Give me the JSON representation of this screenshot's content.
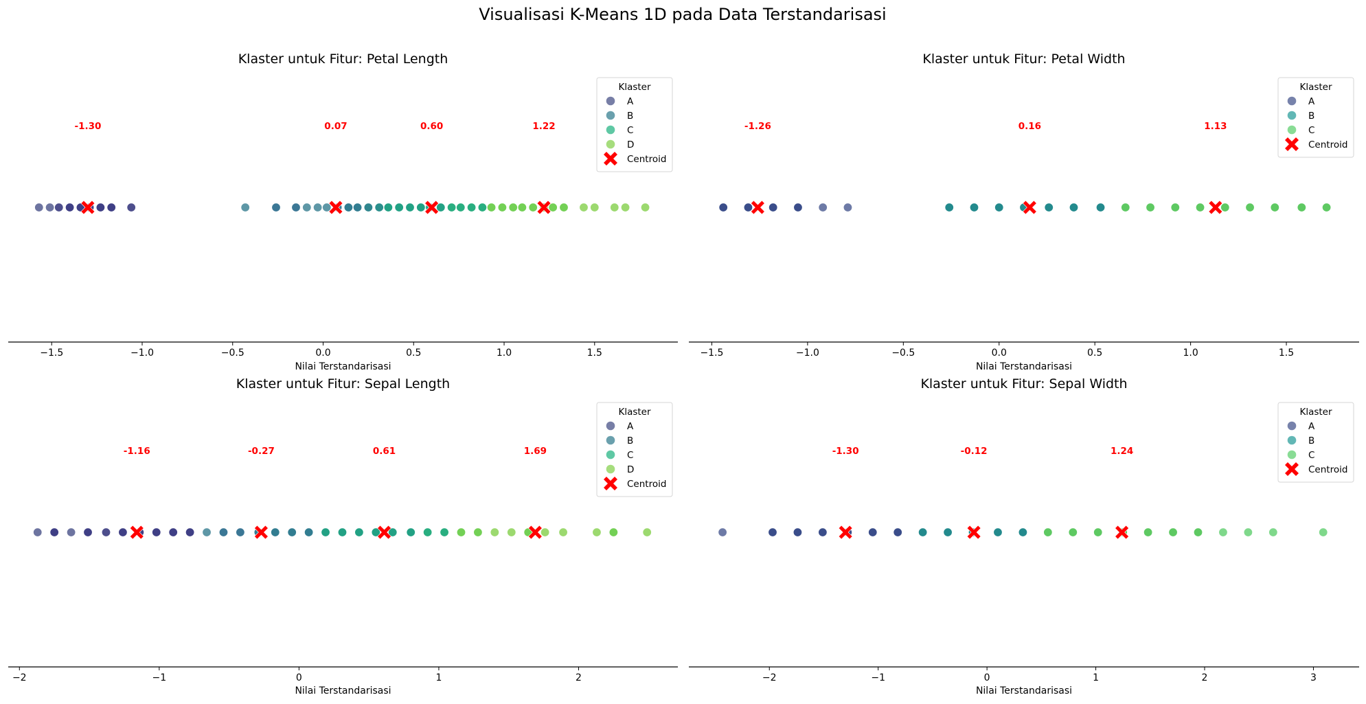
{
  "figure": {
    "title": "Visualisasi K-Means 1D pada Data Terstandarisasi"
  },
  "colors": {
    "centroid": "#ff0000",
    "label": "#ff0000"
  },
  "chart_data": [
    {
      "type": "scatter",
      "title": "Klaster untuk Fitur: Petal Length",
      "xlabel": "Nilai Terstandarisasi",
      "ylabel": "",
      "xlim": [
        -1.74,
        1.96
      ],
      "xticks": [
        -1.5,
        -1.0,
        -0.5,
        0.0,
        0.5,
        1.0,
        1.5
      ],
      "xtick_labels": [
        "−1.5",
        "−1.0",
        "−0.5",
        "0.0",
        "0.5",
        "1.0",
        "1.5"
      ],
      "legend": {
        "title": "Klaster",
        "position": "top-right",
        "centroid_label": "Centroid"
      },
      "clusters": [
        {
          "name": "A",
          "color": "#6d74a0",
          "legend_color": "#777ea6"
        },
        {
          "name": "B",
          "color": "#5e97a6",
          "legend_color": "#6aa0ad"
        },
        {
          "name": "C",
          "color": "#52c29b",
          "legend_color": "#5fc8a4"
        },
        {
          "name": "D",
          "color": "#9cd96f",
          "legend_color": "#a6dd7d"
        }
      ],
      "points": [
        {
          "x": -1.57,
          "color": "#6d74a0"
        },
        {
          "x": -1.51,
          "color": "#6d74a0"
        },
        {
          "x": -1.46,
          "color": "#4d4e8c"
        },
        {
          "x": -1.4,
          "color": "#3f3f85"
        },
        {
          "x": -1.34,
          "color": "#3f3f85"
        },
        {
          "x": -1.29,
          "color": "#3f3f85"
        },
        {
          "x": -1.23,
          "color": "#3f3f85"
        },
        {
          "x": -1.17,
          "color": "#3f3f85"
        },
        {
          "x": -1.06,
          "color": "#4d4e8c"
        },
        {
          "x": -0.43,
          "color": "#5e97a6"
        },
        {
          "x": -0.26,
          "color": "#3b7795"
        },
        {
          "x": -0.15,
          "color": "#3b7795"
        },
        {
          "x": -0.09,
          "color": "#5e97a6"
        },
        {
          "x": -0.03,
          "color": "#5e97a6"
        },
        {
          "x": 0.02,
          "color": "#5e97a6"
        },
        {
          "x": 0.08,
          "color": "#3b7795"
        },
        {
          "x": 0.14,
          "color": "#327d91"
        },
        {
          "x": 0.19,
          "color": "#327d91"
        },
        {
          "x": 0.25,
          "color": "#30868e"
        },
        {
          "x": 0.31,
          "color": "#2b8f8c"
        },
        {
          "x": 0.36,
          "color": "#22a184"
        },
        {
          "x": 0.42,
          "color": "#22a184"
        },
        {
          "x": 0.48,
          "color": "#22a184"
        },
        {
          "x": 0.54,
          "color": "#22a184"
        },
        {
          "x": 0.59,
          "color": "#22a184"
        },
        {
          "x": 0.65,
          "color": "#22a184"
        },
        {
          "x": 0.71,
          "color": "#29ae80"
        },
        {
          "x": 0.76,
          "color": "#29ae80"
        },
        {
          "x": 0.82,
          "color": "#29ae80"
        },
        {
          "x": 0.88,
          "color": "#29ae80"
        },
        {
          "x": 0.93,
          "color": "#73d055"
        },
        {
          "x": 0.99,
          "color": "#73d055"
        },
        {
          "x": 1.05,
          "color": "#73d055"
        },
        {
          "x": 1.1,
          "color": "#73d055"
        },
        {
          "x": 1.16,
          "color": "#73d055"
        },
        {
          "x": 1.22,
          "color": "#73d055"
        },
        {
          "x": 1.27,
          "color": "#73d055"
        },
        {
          "x": 1.33,
          "color": "#73d055"
        },
        {
          "x": 1.44,
          "color": "#9cd96f"
        },
        {
          "x": 1.5,
          "color": "#9cd96f"
        },
        {
          "x": 1.61,
          "color": "#9cd96f"
        },
        {
          "x": 1.67,
          "color": "#9cd96f"
        },
        {
          "x": 1.78,
          "color": "#9cd96f"
        }
      ],
      "centroids": [
        {
          "x": -1.3,
          "label": "-1.30"
        },
        {
          "x": 0.07,
          "label": "0.07"
        },
        {
          "x": 0.6,
          "label": "0.60"
        },
        {
          "x": 1.22,
          "label": "1.22"
        }
      ]
    },
    {
      "type": "scatter",
      "title": "Klaster untuk Fitur: Petal Width",
      "xlabel": "Nilai Terstandarisasi",
      "ylabel": "",
      "xlim": [
        -1.62,
        1.88
      ],
      "xticks": [
        -1.5,
        -1.0,
        -0.5,
        0.0,
        0.5,
        1.0,
        1.5
      ],
      "xtick_labels": [
        "−1.5",
        "−1.0",
        "−0.5",
        "0.0",
        "0.5",
        "1.0",
        "1.5"
      ],
      "legend": {
        "title": "Klaster",
        "position": "top-right",
        "centroid_label": "Centroid"
      },
      "clusters": [
        {
          "name": "A",
          "color": "#6d7aa6",
          "legend_color": "#7782ab"
        },
        {
          "name": "B",
          "color": "#52aeae",
          "legend_color": "#62b7b5"
        },
        {
          "name": "C",
          "color": "#7fd88b",
          "legend_color": "#89dc95"
        }
      ],
      "points": [
        {
          "x": -1.44,
          "color": "#3a4d8a"
        },
        {
          "x": -1.31,
          "color": "#3a4d8a"
        },
        {
          "x": -1.18,
          "color": "#3a4d8a"
        },
        {
          "x": -1.05,
          "color": "#3a4d8a"
        },
        {
          "x": -0.92,
          "color": "#6d7aa6"
        },
        {
          "x": -0.79,
          "color": "#6d7aa6"
        },
        {
          "x": -0.26,
          "color": "#238a8d"
        },
        {
          "x": -0.13,
          "color": "#238a8d"
        },
        {
          "x": 0.0,
          "color": "#238a8d"
        },
        {
          "x": 0.13,
          "color": "#238a8d"
        },
        {
          "x": 0.26,
          "color": "#238a8d"
        },
        {
          "x": 0.39,
          "color": "#238a8d"
        },
        {
          "x": 0.53,
          "color": "#238a8d"
        },
        {
          "x": 0.66,
          "color": "#5ec962"
        },
        {
          "x": 0.79,
          "color": "#5ec962"
        },
        {
          "x": 0.92,
          "color": "#5ec962"
        },
        {
          "x": 1.05,
          "color": "#5ec962"
        },
        {
          "x": 1.18,
          "color": "#5ec962"
        },
        {
          "x": 1.31,
          "color": "#5ec962"
        },
        {
          "x": 1.44,
          "color": "#5ec962"
        },
        {
          "x": 1.58,
          "color": "#5ec962"
        },
        {
          "x": 1.71,
          "color": "#5ec962"
        }
      ],
      "centroids": [
        {
          "x": -1.26,
          "label": "-1.26"
        },
        {
          "x": 0.16,
          "label": "0.16"
        },
        {
          "x": 1.13,
          "label": "1.13"
        }
      ]
    },
    {
      "type": "scatter",
      "title": "Klaster untuk Fitur: Sepal Length",
      "xlabel": "Nilai Terstandarisasi",
      "ylabel": "",
      "xlim": [
        -2.08,
        2.71
      ],
      "xticks": [
        -2,
        -1,
        0,
        1,
        2
      ],
      "xtick_labels": [
        "−2",
        "−1",
        "0",
        "1",
        "2"
      ],
      "legend": {
        "title": "Klaster",
        "position": "top-right",
        "centroid_label": "Centroid"
      },
      "clusters": [
        {
          "name": "A",
          "color": "#6d74a0",
          "legend_color": "#777ea6"
        },
        {
          "name": "B",
          "color": "#5e97a6",
          "legend_color": "#6aa0ad"
        },
        {
          "name": "C",
          "color": "#52c29b",
          "legend_color": "#5fc8a4"
        },
        {
          "name": "D",
          "color": "#9cd96f",
          "legend_color": "#a6dd7d"
        }
      ],
      "points": [
        {
          "x": -1.87,
          "color": "#6d74a0"
        },
        {
          "x": -1.75,
          "color": "#3f3f85"
        },
        {
          "x": -1.63,
          "color": "#6d74a0"
        },
        {
          "x": -1.51,
          "color": "#3f3f85"
        },
        {
          "x": -1.38,
          "color": "#4d4e8c"
        },
        {
          "x": -1.26,
          "color": "#3f3f85"
        },
        {
          "x": -1.14,
          "color": "#3f3f85"
        },
        {
          "x": -1.02,
          "color": "#3f3f85"
        },
        {
          "x": -0.9,
          "color": "#3f3f85"
        },
        {
          "x": -0.78,
          "color": "#3f3f85"
        },
        {
          "x": -0.66,
          "color": "#5e97a6"
        },
        {
          "x": -0.54,
          "color": "#3b7795"
        },
        {
          "x": -0.42,
          "color": "#3b7795"
        },
        {
          "x": -0.29,
          "color": "#327d91"
        },
        {
          "x": -0.17,
          "color": "#327d91"
        },
        {
          "x": -0.05,
          "color": "#327d91"
        },
        {
          "x": 0.07,
          "color": "#327d91"
        },
        {
          "x": 0.19,
          "color": "#22a184"
        },
        {
          "x": 0.31,
          "color": "#22a184"
        },
        {
          "x": 0.43,
          "color": "#22a184"
        },
        {
          "x": 0.55,
          "color": "#22a184"
        },
        {
          "x": 0.67,
          "color": "#22a184"
        },
        {
          "x": 0.8,
          "color": "#22a184"
        },
        {
          "x": 0.92,
          "color": "#29ae80"
        },
        {
          "x": 1.04,
          "color": "#29ae80"
        },
        {
          "x": 1.16,
          "color": "#73d055"
        },
        {
          "x": 1.28,
          "color": "#73d055"
        },
        {
          "x": 1.4,
          "color": "#9cd96f"
        },
        {
          "x": 1.52,
          "color": "#9cd96f"
        },
        {
          "x": 1.64,
          "color": "#73d055"
        },
        {
          "x": 1.76,
          "color": "#9cd96f"
        },
        {
          "x": 1.89,
          "color": "#9cd96f"
        },
        {
          "x": 2.13,
          "color": "#9cd96f"
        },
        {
          "x": 2.25,
          "color": "#73d055"
        },
        {
          "x": 2.49,
          "color": "#9cd96f"
        }
      ],
      "centroids": [
        {
          "x": -1.16,
          "label": "-1.16"
        },
        {
          "x": -0.27,
          "label": "-0.27"
        },
        {
          "x": 0.61,
          "label": "0.61"
        },
        {
          "x": 1.69,
          "label": "1.69"
        }
      ]
    },
    {
      "type": "scatter",
      "title": "Klaster untuk Fitur: Sepal Width",
      "xlabel": "Nilai Terstandarisasi",
      "ylabel": "",
      "xlim": [
        -2.74,
        3.42
      ],
      "xticks": [
        -2,
        -1,
        0,
        1,
        2,
        3
      ],
      "xtick_labels": [
        "−2",
        "−1",
        "0",
        "1",
        "2",
        "3"
      ],
      "legend": {
        "title": "Klaster",
        "position": "top-right",
        "centroid_label": "Centroid"
      },
      "clusters": [
        {
          "name": "A",
          "color": "#6d7aa6",
          "legend_color": "#7782ab"
        },
        {
          "name": "B",
          "color": "#52aeae",
          "legend_color": "#62b7b5"
        },
        {
          "name": "C",
          "color": "#7fd88b",
          "legend_color": "#89dc95"
        }
      ],
      "points": [
        {
          "x": -2.43,
          "color": "#6d7aa6"
        },
        {
          "x": -1.97,
          "color": "#3a4d8a"
        },
        {
          "x": -1.74,
          "color": "#3a4d8a"
        },
        {
          "x": -1.51,
          "color": "#3a4d8a"
        },
        {
          "x": -1.28,
          "color": "#3a4d8a"
        },
        {
          "x": -1.05,
          "color": "#3a4d8a"
        },
        {
          "x": -0.82,
          "color": "#3a4d8a"
        },
        {
          "x": -0.59,
          "color": "#238a8d"
        },
        {
          "x": -0.36,
          "color": "#238a8d"
        },
        {
          "x": -0.13,
          "color": "#238a8d"
        },
        {
          "x": 0.1,
          "color": "#238a8d"
        },
        {
          "x": 0.33,
          "color": "#238a8d"
        },
        {
          "x": 0.56,
          "color": "#5ec962"
        },
        {
          "x": 0.79,
          "color": "#5ec962"
        },
        {
          "x": 1.02,
          "color": "#5ec962"
        },
        {
          "x": 1.25,
          "color": "#5ec962"
        },
        {
          "x": 1.48,
          "color": "#5ec962"
        },
        {
          "x": 1.71,
          "color": "#5ec962"
        },
        {
          "x": 1.94,
          "color": "#5ec962"
        },
        {
          "x": 2.17,
          "color": "#7fd88b"
        },
        {
          "x": 2.4,
          "color": "#7fd88b"
        },
        {
          "x": 2.63,
          "color": "#7fd88b"
        },
        {
          "x": 3.09,
          "color": "#7fd88b"
        }
      ],
      "centroids": [
        {
          "x": -1.3,
          "label": "-1.30"
        },
        {
          "x": -0.12,
          "label": "-0.12"
        },
        {
          "x": 1.24,
          "label": "1.24"
        }
      ]
    }
  ]
}
